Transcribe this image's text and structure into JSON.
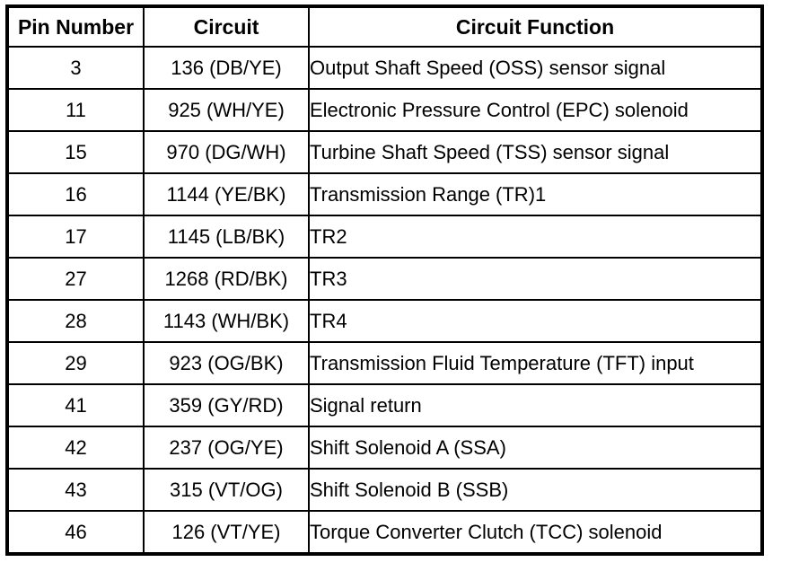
{
  "table": {
    "columns": {
      "pin": "Pin Number",
      "circuit": "Circuit",
      "function": "Circuit Function"
    },
    "rows": [
      {
        "pin": "3",
        "circuit": "136 (DB/YE)",
        "function": "Output Shaft Speed (OSS) sensor signal"
      },
      {
        "pin": "11",
        "circuit": "925 (WH/YE)",
        "function": "Electronic Pressure Control (EPC) solenoid"
      },
      {
        "pin": "15",
        "circuit": "970 (DG/WH)",
        "function": "Turbine Shaft Speed (TSS) sensor signal"
      },
      {
        "pin": "16",
        "circuit": "1144 (YE/BK)",
        "function": "Transmission Range (TR)1"
      },
      {
        "pin": "17",
        "circuit": "1145 (LB/BK)",
        "function": "TR2"
      },
      {
        "pin": "27",
        "circuit": "1268 (RD/BK)",
        "function": "TR3"
      },
      {
        "pin": "28",
        "circuit": "1143 (WH/BK)",
        "function": "TR4"
      },
      {
        "pin": "29",
        "circuit": "923 (OG/BK)",
        "function": "Transmission Fluid Temperature (TFT) input"
      },
      {
        "pin": "41",
        "circuit": "359 (GY/RD)",
        "function": "Signal return"
      },
      {
        "pin": "42",
        "circuit": "237 (OG/YE)",
        "function": "Shift Solenoid A (SSA)"
      },
      {
        "pin": "43",
        "circuit": "315 (VT/OG)",
        "function": "Shift Solenoid B (SSB)"
      },
      {
        "pin": "46",
        "circuit": "126 (VT/YE)",
        "function": "Torque Converter Clutch (TCC) solenoid"
      }
    ],
    "colors": {
      "border": "#000000",
      "background": "#ffffff",
      "text": "#000000"
    }
  }
}
